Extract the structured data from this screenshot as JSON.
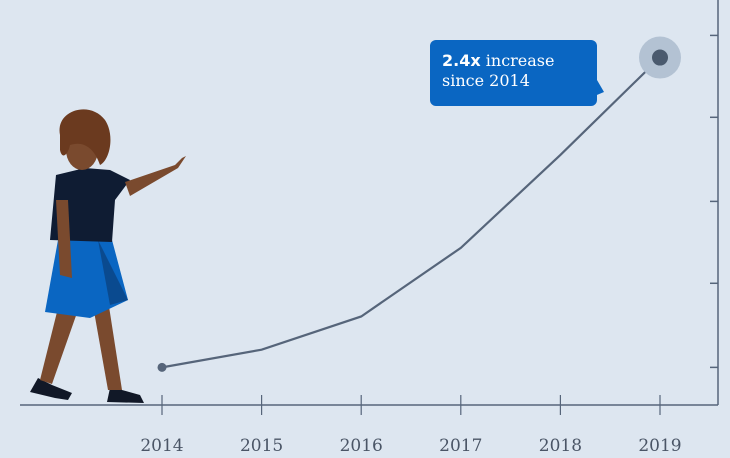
{
  "chart_data": {
    "type": "line",
    "categories": [
      "2014",
      "2015",
      "2016",
      "2017",
      "2018",
      "2019"
    ],
    "values": [
      1,
      1.08,
      1.23,
      1.54,
      1.96,
      2.4
    ],
    "color": "#56657a",
    "ylim": [
      0.83,
      2.66
    ],
    "yticks": [
      1,
      1.38,
      1.75,
      2.13,
      2.5
    ],
    "annotation": {
      "emphasis": "2.4x",
      "text": "increase since 2014"
    }
  }
}
